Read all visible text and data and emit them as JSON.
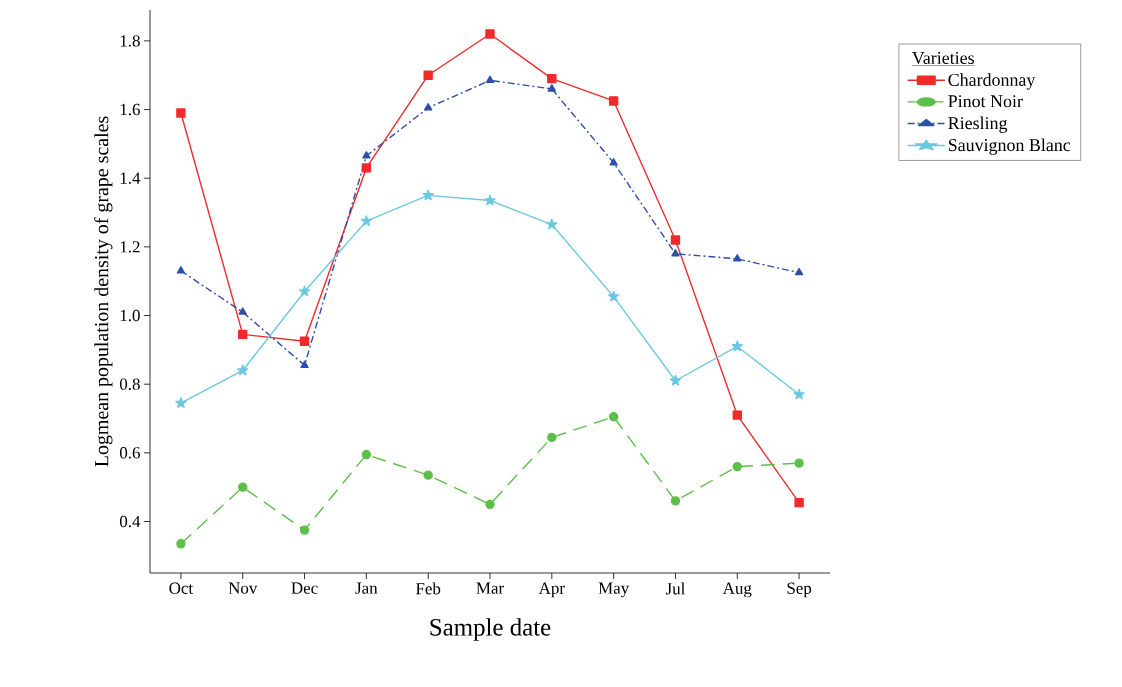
{
  "chart_data": {
    "type": "line",
    "xlabel": "Sample date",
    "ylabel": "Logmean population density of grape scales",
    "legend_title": "Varieties",
    "categories": [
      "Oct",
      "Nov",
      "Dec",
      "Jan",
      "Feb",
      "Mar",
      "Apr",
      "May",
      "Jul",
      "Aug",
      "Sep"
    ],
    "series": [
      {
        "name": "Chardonnay",
        "color": "#ee2b2b",
        "marker": "square",
        "line_style": "solid",
        "values": [
          1.59,
          0.945,
          0.925,
          1.43,
          1.7,
          1.82,
          1.69,
          1.625,
          1.22,
          0.71,
          0.455
        ]
      },
      {
        "name": "Pinot Noir",
        "color": "#5cbf4a",
        "marker": "circle",
        "line_style": "dashed",
        "values": [
          0.335,
          0.5,
          0.375,
          0.595,
          0.535,
          0.45,
          0.645,
          0.705,
          0.46,
          0.56,
          0.57
        ]
      },
      {
        "name": "Riesling",
        "color": "#2e4fa8",
        "marker": "triangle",
        "line_style": "dashdot",
        "values": [
          1.13,
          1.01,
          0.855,
          1.465,
          1.605,
          1.685,
          1.66,
          1.445,
          1.18,
          1.165,
          1.125
        ]
      },
      {
        "name": "Sauvignon Blanc",
        "color": "#6cc8e0",
        "marker": "star",
        "line_style": "solid",
        "values": [
          0.745,
          0.84,
          1.07,
          1.275,
          1.35,
          1.335,
          1.265,
          1.055,
          0.81,
          0.91,
          0.77
        ]
      }
    ],
    "ylim": [
      0.25,
      1.89
    ],
    "yticks": [
      0.4,
      0.6,
      0.8,
      {
        "value": 1.0,
        "label": "1.0"
      },
      1.2,
      1.4,
      1.6,
      1.8
    ],
    "legend": "top right",
    "grid": false
  }
}
